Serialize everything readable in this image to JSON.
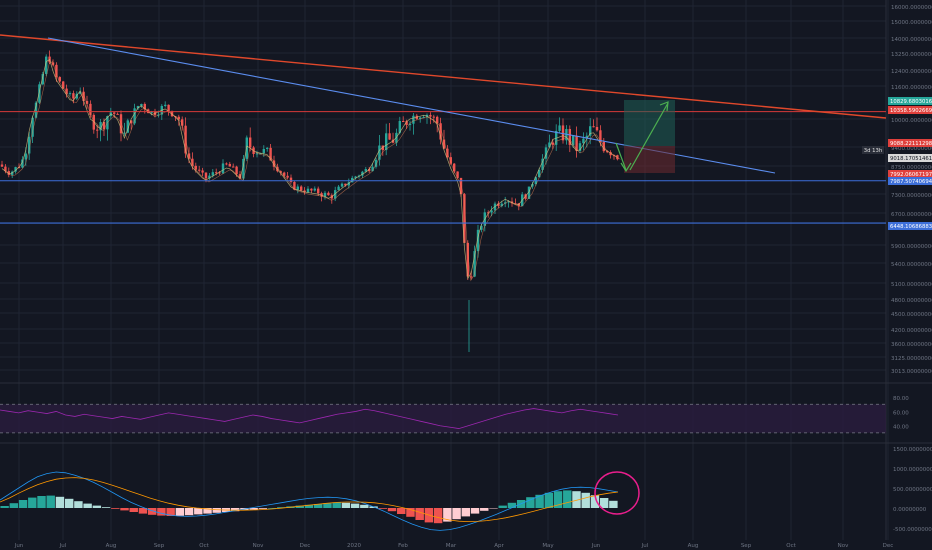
{
  "colors": {
    "background": "#131722",
    "grid": "#1f2433",
    "bull": "#26a69a",
    "bear": "#ef5350",
    "trend_blue": "#5b8def",
    "trend_red": "#e0482b",
    "level_red": "#d63a3a",
    "support_blue": "#3d6fd9",
    "arrow_green": "#4caf50",
    "rsi_fill": "#2a1d3f",
    "rsi_line": "#9c27b0",
    "macd_line": "#2196f3",
    "signal_line": "#ff9800",
    "circle": "#e91e8c",
    "axis_text": "#6e7584"
  },
  "chart_data": {
    "type": "candlestick",
    "title": "",
    "x_ticks": [
      "Jun",
      "Jul",
      "Aug",
      "Sep",
      "Oct",
      "Nov",
      "Dec",
      "2020",
      "Feb",
      "Mar",
      "Apr",
      "May",
      "Jun",
      "Jul",
      "Aug",
      "Sep",
      "Oct",
      "Nov",
      "Dec"
    ],
    "y_ticks": [
      "16000.00000000",
      "15000.00000000",
      "14000.00000000",
      "13250.00000000",
      "12400.00000000",
      "11600.00000000",
      "10000.00000000",
      "9400.00000000",
      "8750.00000000",
      "7300.00000000",
      "6700.00000000",
      "5900.00000000",
      "5400.00000000",
      "5100.00000000",
      "4800.00000000",
      "4500.00000000",
      "4200.00000000",
      "3600.00000000",
      "3125.00000000",
      "3013.00000000"
    ],
    "price_labels": [
      {
        "value": "10829.68030166",
        "kind": "green"
      },
      {
        "value": "10358.59026695",
        "kind": "red"
      },
      {
        "value": "9088.22111298",
        "kind": "red"
      },
      {
        "value": "3d 13h",
        "kind": "dark"
      },
      {
        "value": "9018.17051461",
        "kind": "grey"
      },
      {
        "value": "7992.06067197",
        "kind": "red"
      },
      {
        "value": "7987.50740694",
        "kind": "blue"
      },
      {
        "value": "6448.10686883",
        "kind": "blue"
      }
    ],
    "levels": {
      "support": 6448.10686883,
      "mid_support": 7987.50740694,
      "resistance": 10358.59026695,
      "target": 10829.68030166
    },
    "rsi": {
      "y_ticks": [
        "80.00",
        "60.00",
        "40.00"
      ],
      "bands": [
        70,
        30
      ],
      "values": [
        62,
        60,
        58,
        61,
        59,
        57,
        60,
        55,
        53,
        56,
        54,
        52,
        50,
        53,
        51,
        49,
        52,
        55,
        58,
        56,
        54,
        52,
        50,
        48,
        46,
        49,
        52,
        55,
        53,
        50,
        48,
        46,
        44,
        47,
        50,
        53,
        56,
        58,
        60,
        63,
        61,
        58,
        55,
        52,
        49,
        46,
        43,
        40,
        38,
        36,
        40,
        44,
        48,
        52,
        56,
        59,
        62,
        64,
        62,
        60,
        58,
        61,
        63,
        61,
        59,
        57,
        55
      ]
    },
    "macd": {
      "y_ticks": [
        "1500.00000000",
        "1000.00000000",
        "500.00000000",
        "0.00000000",
        "-500.00000000"
      ],
      "histogram": [
        50,
        120,
        200,
        260,
        300,
        310,
        280,
        230,
        170,
        110,
        60,
        20,
        -20,
        -60,
        -100,
        -140,
        -170,
        -190,
        -200,
        -195,
        -180,
        -160,
        -140,
        -120,
        -100,
        -80,
        -60,
        -40,
        -20,
        0,
        20,
        40,
        60,
        80,
        100,
        120,
        140,
        130,
        110,
        80,
        40,
        -20,
        -80,
        -150,
        -220,
        -300,
        -360,
        -380,
        -340,
        -280,
        -210,
        -140,
        -70,
        -10,
        60,
        130,
        200,
        270,
        330,
        380,
        420,
        440,
        420,
        380,
        320,
        250,
        180
      ],
      "macd_line": [
        200,
        350,
        500,
        650,
        780,
        860,
        900,
        880,
        820,
        740,
        640,
        520,
        390,
        260,
        140,
        40,
        -50,
        -120,
        -170,
        -200,
        -210,
        -200,
        -180,
        -150,
        -110,
        -70,
        -30,
        10,
        50,
        90,
        130,
        170,
        210,
        240,
        260,
        270,
        260,
        230,
        180,
        110,
        20,
        -80,
        -190,
        -300,
        -400,
        -480,
        -540,
        -560,
        -540,
        -490,
        -420,
        -340,
        -250,
        -160,
        -60,
        40,
        140,
        240,
        330,
        410,
        470,
        510,
        520,
        510,
        480,
        440,
        400
      ],
      "signal_line": [
        150,
        250,
        370,
        480,
        580,
        660,
        720,
        750,
        760,
        740,
        700,
        640,
        570,
        490,
        410,
        330,
        250,
        180,
        120,
        70,
        30,
        0,
        -20,
        -40,
        -50,
        -55,
        -55,
        -50,
        -40,
        -25,
        -5,
        20,
        45,
        70,
        95,
        120,
        140,
        150,
        150,
        145,
        130,
        100,
        60,
        10,
        -50,
        -120,
        -190,
        -250,
        -300,
        -330,
        -340,
        -335,
        -315,
        -285,
        -245,
        -195,
        -140,
        -80,
        -20,
        40,
        100,
        160,
        220,
        280,
        330,
        370,
        400
      ]
    }
  }
}
